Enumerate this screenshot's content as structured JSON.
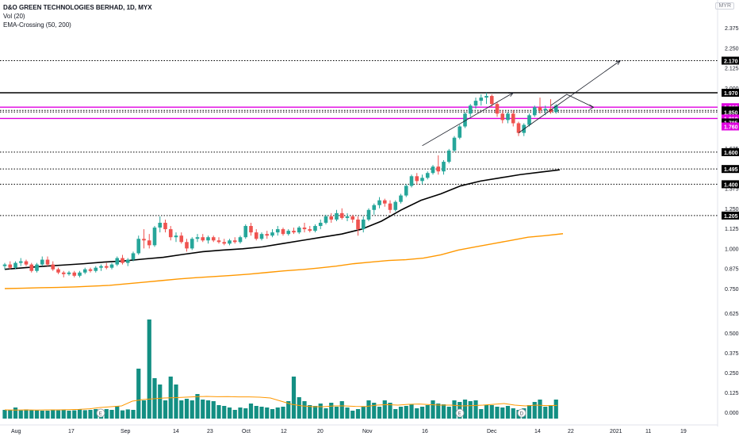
{
  "header": {
    "title": "D&O GREEN TECHNOLOGIES BERHAD, 1D, MYX",
    "indicator_volume": "Vol (20)",
    "indicator_ema": "EMA-Crossing (50, 200)",
    "currency": "MYR"
  },
  "colors": {
    "up": "#26a69a",
    "down": "#ef5350",
    "ema50": "#000000",
    "ema200": "#ff9800",
    "vol_ma": "#ff9800",
    "magenta": "#e000e0",
    "volume_bar": "#138f83"
  },
  "chart_data": {
    "type": "candlestick",
    "title": "D&O GREEN TECHNOLOGIES BERHAD, 1D, MYX",
    "price_axis_ticks": [
      "2.375",
      "2.250",
      "2.125",
      "2.000",
      "1.875",
      "1.750",
      "1.625",
      "1.375",
      "1.250",
      "1.125",
      "1.000",
      "0.875",
      "0.750",
      "0.625",
      "0.500",
      "0.375",
      "0.250",
      "0.125",
      "0.000"
    ],
    "time_axis_ticks": [
      "Aug",
      "17",
      "Sep",
      "14",
      "23",
      "Oct",
      "12",
      "20",
      "Nov",
      "16",
      "Dec",
      "14",
      "22",
      "2021",
      "11",
      "19"
    ],
    "price_levels": [
      {
        "label": "2.170",
        "value": 2.17,
        "style": "dotted",
        "color": "#000000"
      },
      {
        "label": "1.970",
        "value": 1.97,
        "style": "solid",
        "color": "#000000"
      },
      {
        "label": "1.880",
        "value": 1.88,
        "style": "solid",
        "color": "#e000e0"
      },
      {
        "label": "1.860",
        "value": 1.86,
        "style": "dotted",
        "color": "#000000"
      },
      {
        "label": "1.850",
        "value": 1.85,
        "style": "dotted",
        "color": "#000000"
      },
      {
        "label": "1.810",
        "value": 1.81,
        "style": "solid",
        "color": "#e000e0"
      },
      {
        "label": "1.785",
        "value": 1.785,
        "style": "none",
        "color": "#000000"
      },
      {
        "label": "1.760",
        "value": 1.76,
        "style": "none",
        "color": "#e000e0"
      },
      {
        "label": "1.600",
        "value": 1.6,
        "style": "dotted",
        "color": "#000000"
      },
      {
        "label": "1.495",
        "value": 1.495,
        "style": "dotted",
        "color": "#000000"
      },
      {
        "label": "1.400",
        "value": 1.4,
        "style": "dotted",
        "color": "#000000"
      },
      {
        "label": "1.205",
        "value": 1.205,
        "style": "dotted",
        "color": "#000000"
      }
    ],
    "ohlc": [
      [
        0.89,
        0.91,
        0.87,
        0.9
      ],
      [
        0.9,
        0.92,
        0.87,
        0.88
      ],
      [
        0.88,
        0.92,
        0.87,
        0.91
      ],
      [
        0.91,
        0.94,
        0.89,
        0.92
      ],
      [
        0.92,
        0.93,
        0.89,
        0.9
      ],
      [
        0.9,
        0.91,
        0.85,
        0.86
      ],
      [
        0.86,
        0.91,
        0.85,
        0.9
      ],
      [
        0.9,
        0.95,
        0.89,
        0.93
      ],
      [
        0.93,
        0.95,
        0.89,
        0.9
      ],
      [
        0.9,
        0.92,
        0.86,
        0.87
      ],
      [
        0.87,
        0.88,
        0.84,
        0.85
      ],
      [
        0.85,
        0.86,
        0.82,
        0.84
      ],
      [
        0.84,
        0.86,
        0.83,
        0.85
      ],
      [
        0.85,
        0.86,
        0.82,
        0.83
      ],
      [
        0.83,
        0.86,
        0.82,
        0.85
      ],
      [
        0.85,
        0.88,
        0.84,
        0.87
      ],
      [
        0.87,
        0.88,
        0.85,
        0.86
      ],
      [
        0.86,
        0.89,
        0.85,
        0.88
      ],
      [
        0.88,
        0.9,
        0.86,
        0.89
      ],
      [
        0.89,
        0.91,
        0.87,
        0.88
      ],
      [
        0.88,
        0.91,
        0.87,
        0.9
      ],
      [
        0.9,
        0.95,
        0.89,
        0.94
      ],
      [
        0.94,
        0.96,
        0.9,
        0.91
      ],
      [
        0.91,
        0.94,
        0.89,
        0.93
      ],
      [
        0.93,
        0.98,
        0.92,
        0.97
      ],
      [
        0.97,
        1.08,
        0.96,
        1.06
      ],
      [
        1.06,
        1.12,
        1.0,
        1.05
      ],
      [
        1.05,
        1.09,
        1.0,
        1.02
      ],
      [
        1.02,
        1.14,
        1.01,
        1.13
      ],
      [
        1.13,
        1.2,
        1.1,
        1.16
      ],
      [
        1.16,
        1.18,
        1.1,
        1.12
      ],
      [
        1.12,
        1.14,
        1.05,
        1.07
      ],
      [
        1.07,
        1.1,
        1.04,
        1.08
      ],
      [
        1.08,
        1.1,
        1.03,
        1.04
      ],
      [
        1.04,
        1.06,
        0.98,
        1.0
      ],
      [
        1.0,
        1.07,
        0.99,
        1.06
      ],
      [
        1.06,
        1.09,
        1.04,
        1.07
      ],
      [
        1.07,
        1.09,
        1.04,
        1.05
      ],
      [
        1.05,
        1.08,
        1.03,
        1.07
      ],
      [
        1.07,
        1.08,
        1.04,
        1.05
      ],
      [
        1.05,
        1.07,
        1.03,
        1.04
      ],
      [
        1.04,
        1.06,
        1.02,
        1.03
      ],
      [
        1.03,
        1.06,
        1.02,
        1.05
      ],
      [
        1.05,
        1.07,
        1.03,
        1.04
      ],
      [
        1.04,
        1.08,
        1.03,
        1.07
      ],
      [
        1.07,
        1.15,
        1.06,
        1.14
      ],
      [
        1.14,
        1.16,
        1.08,
        1.1
      ],
      [
        1.1,
        1.12,
        1.05,
        1.06
      ],
      [
        1.06,
        1.1,
        1.05,
        1.09
      ],
      [
        1.09,
        1.11,
        1.06,
        1.08
      ],
      [
        1.08,
        1.12,
        1.07,
        1.1
      ],
      [
        1.1,
        1.14,
        1.08,
        1.12
      ],
      [
        1.12,
        1.13,
        1.08,
        1.09
      ],
      [
        1.09,
        1.12,
        1.08,
        1.11
      ],
      [
        1.11,
        1.13,
        1.09,
        1.1
      ],
      [
        1.1,
        1.14,
        1.09,
        1.13
      ],
      [
        1.13,
        1.16,
        1.1,
        1.12
      ],
      [
        1.12,
        1.14,
        1.1,
        1.11
      ],
      [
        1.11,
        1.15,
        1.1,
        1.14
      ],
      [
        1.14,
        1.18,
        1.12,
        1.16
      ],
      [
        1.16,
        1.21,
        1.15,
        1.2
      ],
      [
        1.2,
        1.22,
        1.16,
        1.18
      ],
      [
        1.18,
        1.24,
        1.17,
        1.22
      ],
      [
        1.22,
        1.25,
        1.18,
        1.19
      ],
      [
        1.19,
        1.22,
        1.17,
        1.2
      ],
      [
        1.2,
        1.21,
        1.16,
        1.18
      ],
      [
        1.18,
        1.2,
        1.08,
        1.12
      ],
      [
        1.12,
        1.2,
        1.1,
        1.18
      ],
      [
        1.18,
        1.25,
        1.17,
        1.24
      ],
      [
        1.24,
        1.28,
        1.21,
        1.27
      ],
      [
        1.27,
        1.32,
        1.25,
        1.3
      ],
      [
        1.3,
        1.31,
        1.26,
        1.28
      ],
      [
        1.28,
        1.3,
        1.22,
        1.24
      ],
      [
        1.24,
        1.3,
        1.23,
        1.29
      ],
      [
        1.29,
        1.34,
        1.28,
        1.33
      ],
      [
        1.33,
        1.4,
        1.32,
        1.39
      ],
      [
        1.39,
        1.46,
        1.38,
        1.45
      ],
      [
        1.45,
        1.47,
        1.4,
        1.42
      ],
      [
        1.42,
        1.46,
        1.4,
        1.44
      ],
      [
        1.44,
        1.48,
        1.43,
        1.47
      ],
      [
        1.47,
        1.52,
        1.46,
        1.51
      ],
      [
        1.51,
        1.58,
        1.46,
        1.48
      ],
      [
        1.48,
        1.55,
        1.46,
        1.54
      ],
      [
        1.54,
        1.62,
        1.53,
        1.61
      ],
      [
        1.61,
        1.7,
        1.6,
        1.69
      ],
      [
        1.69,
        1.77,
        1.68,
        1.76
      ],
      [
        1.76,
        1.85,
        1.75,
        1.84
      ],
      [
        1.84,
        1.9,
        1.82,
        1.89
      ],
      [
        1.89,
        1.94,
        1.87,
        1.92
      ],
      [
        1.92,
        1.96,
        1.89,
        1.94
      ],
      [
        1.94,
        1.97,
        1.9,
        1.95
      ],
      [
        1.95,
        1.96,
        1.88,
        1.9
      ],
      [
        1.9,
        1.91,
        1.82,
        1.84
      ],
      [
        1.84,
        1.86,
        1.78,
        1.8
      ],
      [
        1.8,
        1.85,
        1.78,
        1.84
      ],
      [
        1.84,
        1.86,
        1.76,
        1.78
      ],
      [
        1.78,
        1.79,
        1.7,
        1.72
      ],
      [
        1.72,
        1.78,
        1.7,
        1.77
      ],
      [
        1.77,
        1.84,
        1.76,
        1.83
      ],
      [
        1.83,
        1.89,
        1.82,
        1.88
      ],
      [
        1.88,
        1.94,
        1.84,
        1.86
      ],
      [
        1.86,
        1.89,
        1.83,
        1.87
      ],
      [
        1.87,
        1.93,
        1.84,
        1.85
      ],
      [
        1.85,
        1.9,
        1.84,
        1.89
      ]
    ],
    "ema50": [
      0.87,
      0.88,
      0.889,
      0.897,
      0.905,
      0.915,
      0.922,
      0.934,
      0.945,
      0.963,
      0.98,
      0.99,
      0.998,
      1.01,
      1.03,
      1.05,
      1.07,
      1.09,
      1.12,
      1.17,
      1.24,
      1.3,
      1.34,
      1.39,
      1.42,
      1.44,
      1.46,
      1.475,
      1.49
    ],
    "ema200": [
      0.75,
      0.752,
      0.755,
      0.757,
      0.76,
      0.765,
      0.77,
      0.78,
      0.79,
      0.8,
      0.81,
      0.818,
      0.825,
      0.832,
      0.84,
      0.85,
      0.86,
      0.868,
      0.878,
      0.89,
      0.905,
      0.915,
      0.925,
      0.93,
      0.94,
      0.96,
      0.99,
      1.01,
      1.03,
      1.05,
      1.07,
      1.08,
      1.092
    ],
    "volume": [
      0.015,
      0.015,
      0.03,
      0.012,
      0.018,
      0.015,
      0.012,
      0.01,
      0.01,
      0.015,
      0.012,
      0.015,
      0.01,
      0.012,
      0.018,
      0.013,
      0.015,
      0.02,
      0.012,
      0.02,
      0.015,
      0.04,
      0.012,
      0.018,
      0.015,
      0.275,
      0.075,
      0.585,
      0.215,
      0.175,
      0.075,
      0.225,
      0.175,
      0.075,
      0.085,
      0.075,
      0.115,
      0.08,
      0.075,
      0.07,
      0.045,
      0.04,
      0.03,
      0.015,
      0.03,
      0.025,
      0.055,
      0.04,
      0.035,
      0.03,
      0.02,
      0.03,
      0.035,
      0.07,
      0.225,
      0.095,
      0.07,
      0.045,
      0.04,
      0.055,
      0.025,
      0.06,
      0.035,
      0.07,
      0.03,
      0.01,
      0.02,
      0.035,
      0.075,
      0.06,
      0.035,
      0.075,
      0.06,
      0.02,
      0.035,
      0.04,
      0.05,
      0.025,
      0.035,
      0.045,
      0.075,
      0.055,
      0.05,
      0.035,
      0.075,
      0.065,
      0.08,
      0.07,
      0.075,
      0.02,
      0.045,
      0.045,
      0.035,
      0.03,
      0.04,
      0.025,
      0.015,
      0.025,
      0.045,
      0.065,
      0.08,
      0.035,
      0.045,
      0.08
    ],
    "vol_ma": [
      0.015,
      0.014,
      0.015,
      0.014,
      0.015,
      0.015,
      0.016,
      0.018,
      0.022,
      0.03,
      0.035,
      0.04,
      0.07,
      0.08,
      0.085,
      0.09,
      0.092,
      0.095,
      0.098,
      0.1,
      0.098,
      0.099,
      0.097,
      0.097,
      0.095,
      0.09,
      0.07,
      0.05,
      0.04,
      0.035,
      0.035,
      0.04,
      0.04,
      0.037,
      0.036,
      0.045,
      0.048,
      0.045,
      0.05,
      0.052,
      0.048,
      0.045,
      0.045,
      0.04,
      0.042,
      0.045,
      0.05,
      0.055,
      0.045,
      0.04,
      0.045,
      0.042,
      0.043
    ],
    "ema_crossing_markers": [
      "E",
      "E",
      "D"
    ],
    "drawings": [
      {
        "type": "arrow",
        "from": [
          78,
          1.64
        ],
        "to": [
          95,
          1.97
        ]
      },
      {
        "type": "arrow",
        "from": [
          96,
          1.72
        ],
        "to": [
          115,
          2.17
        ]
      },
      {
        "type": "polyline",
        "points": [
          [
            102,
            1.89
          ],
          [
            105,
            1.96
          ],
          [
            110,
            1.88
          ]
        ]
      }
    ]
  }
}
